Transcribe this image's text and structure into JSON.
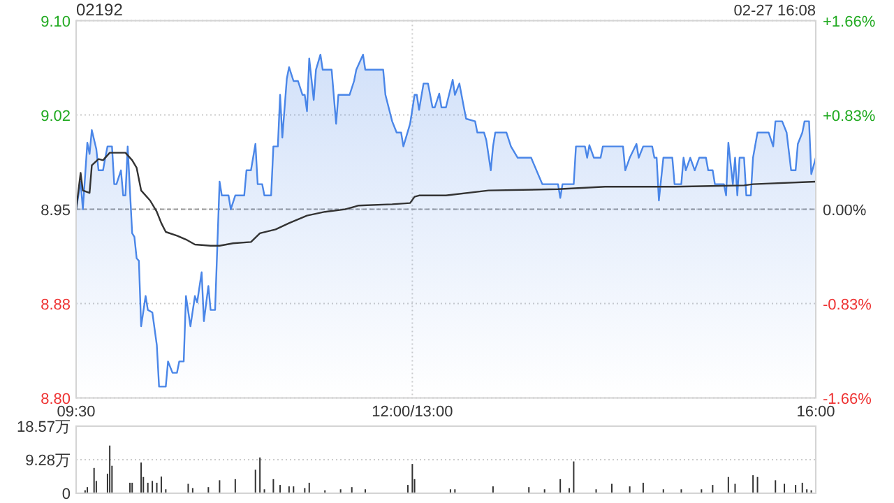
{
  "chart_data": [
    {
      "type": "area",
      "title": "02192",
      "annotations": [
        "02-27 16:08"
      ],
      "categories": [
        "09:30",
        null,
        null,
        null,
        null,
        null,
        null,
        null,
        null,
        null,
        null,
        null,
        null,
        null,
        null,
        null,
        null,
        null,
        null,
        null,
        null,
        null,
        null,
        null,
        null,
        null,
        null,
        null,
        null,
        null,
        null,
        null,
        null,
        null,
        null,
        null,
        null,
        null,
        null,
        null,
        null,
        null,
        null,
        null,
        null,
        null,
        null,
        null,
        null,
        null,
        null,
        null,
        null,
        null,
        null,
        null,
        null,
        null,
        null,
        null,
        null,
        null,
        null,
        null,
        null,
        null,
        null,
        null,
        null,
        null,
        null,
        null,
        null,
        null,
        null,
        null,
        null,
        null,
        null,
        null,
        null,
        null,
        null,
        null,
        null,
        null,
        null,
        null,
        null,
        null,
        null,
        null,
        null,
        null,
        null,
        null,
        null,
        null,
        null,
        null,
        null,
        null,
        null,
        null,
        null,
        null,
        null,
        null,
        null,
        null,
        null,
        null,
        null,
        null,
        null,
        null,
        null,
        null,
        null,
        null,
        null,
        null,
        null,
        null,
        null,
        null,
        null,
        null,
        null,
        null,
        null,
        null,
        null,
        null,
        null,
        null,
        null,
        null,
        null,
        null,
        null,
        null,
        null,
        null,
        null,
        null,
        null,
        null,
        null,
        null,
        "12:00/13:00",
        null,
        null,
        null,
        null,
        null,
        null,
        null,
        null,
        null,
        null,
        null,
        null,
        null,
        null,
        null,
        null,
        null,
        null,
        null,
        null,
        null,
        null,
        null,
        null,
        null,
        null,
        null,
        null,
        null,
        null,
        null,
        null,
        null,
        null,
        null,
        null,
        null,
        null,
        null,
        null,
        null,
        null,
        null,
        null,
        null,
        null,
        null,
        null,
        null,
        null,
        null,
        null,
        null,
        null,
        null,
        null,
        null,
        null,
        null,
        null,
        null,
        null,
        null,
        null,
        null,
        null,
        null,
        null,
        null,
        null,
        null,
        null,
        null,
        null,
        null,
        null,
        null,
        null,
        null,
        null,
        null,
        null,
        null,
        null,
        null,
        null,
        null,
        null,
        null,
        null,
        null,
        null,
        null,
        null,
        null,
        null,
        null,
        null,
        null,
        null,
        null,
        null,
        null,
        null,
        null,
        null,
        null,
        null,
        null,
        null,
        null,
        null,
        null,
        null,
        null,
        null,
        null,
        null,
        null,
        null,
        null,
        null,
        null,
        null,
        null,
        null,
        null,
        null,
        null,
        null,
        null,
        null,
        null,
        null,
        null,
        null,
        null,
        null,
        null,
        null,
        null,
        null,
        null,
        null,
        null,
        null,
        null,
        null,
        null,
        null,
        null,
        null,
        null,
        null,
        null,
        null,
        null,
        null,
        null,
        null,
        null,
        null,
        null,
        null,
        null,
        null,
        null,
        null,
        null,
        null,
        null,
        null,
        null,
        null,
        null,
        null,
        null,
        null,
        null,
        "16:00"
      ],
      "ylim": [
        8.8,
        9.1
      ],
      "yticks": [
        {
          "value": 9.1,
          "label": "9.10"
        },
        {
          "value": 9.025,
          "label": "9.02"
        },
        {
          "value": 8.95,
          "label": "8.95"
        },
        {
          "value": 8.875,
          "label": "8.88"
        },
        {
          "value": 8.8,
          "label": "8.80"
        }
      ],
      "y2lim": [
        -1.66,
        1.66
      ],
      "y2ticks": [
        {
          "value": 1.66,
          "label": "+1.66%"
        },
        {
          "value": 0.83,
          "label": "+0.83%"
        },
        {
          "value": 0,
          "label": "0.00%"
        },
        {
          "value": -0.83,
          "label": "-0.83%"
        },
        {
          "value": -1.66,
          "label": "-1.66%"
        }
      ],
      "grid": true,
      "ref_lines": [
        {
          "axis": "y",
          "value": 8.95,
          "color": "#999999",
          "line_style": "dashed"
        }
      ],
      "series": [
        {
          "color": "#4a86e8",
          "values": [
            8.95,
            8.961,
            8.972,
            8.95,
            null,
            9.003,
            8.994,
            9.013,
            null,
            8.998,
            8.981,
            null,
            8.981,
            8.991,
            9.0,
            null,
            9.0,
            8.97,
            8.97,
            null,
            8.981,
            8.961,
            8.961,
            9.0,
            null,
            8.931,
            8.928,
            8.911,
            8.909,
            8.857,
            null,
            8.881,
            8.87,
            null,
            8.868,
            null,
            8.842,
            8.809,
            null,
            null,
            8.809,
            8.829,
            null,
            8.82,
            null,
            8.82,
            8.829,
            null,
            8.829,
            8.881,
            null,
            8.857,
            null,
            8.881,
            8.876,
            null,
            8.9,
            8.861,
            null,
            8.889,
            8.87,
            null,
            8.87,
            null,
            8.972,
            8.961,
            null,
            null,
            8.961,
            8.95,
            null,
            8.961,
            null,
            null,
            null,
            8.961,
            8.981,
            null,
            8.981,
            null,
            9.002,
            8.97,
            null,
            8.97,
            8.961,
            null,
            null,
            8.961,
            9.0,
            null,
            9.0,
            9.041,
            9.007,
            null,
            9.054,
            9.063,
            null,
            9.052,
            null,
            9.052,
            null,
            9.041,
            9.041,
            9.028,
            9.07,
            null,
            9.037,
            9.061,
            null,
            9.073,
            9.061,
            null,
            null,
            null,
            9.061,
            null,
            9.018,
            9.041,
            null,
            null,
            null,
            null,
            9.041,
            null,
            9.052,
            9.061,
            null,
            null,
            9.073,
            9.061,
            null,
            null,
            null,
            null,
            null,
            null,
            null,
            9.061,
            9.041,
            null,
            null,
            9.02,
            null,
            9.011,
            null,
            9.011,
            9.0,
            null,
            null,
            9.018,
            null,
            9.041,
            9.041,
            9.029,
            null,
            9.05,
            null,
            9.05,
            null,
            9.031,
            9.031,
            null,
            9.042,
            9.031,
            null,
            9.031,
            null,
            null,
            9.053,
            9.041,
            null,
            9.05,
            null,
            9.031,
            9.022,
            null,
            null,
            null,
            9.02,
            9.011,
            null,
            null,
            9.011,
            9.005,
            null,
            8.981,
            9.0,
            9.011,
            null,
            null,
            null,
            null,
            9.011,
            null,
            9.0,
            null,
            null,
            8.991,
            null,
            null,
            null,
            null,
            null,
            8.991,
            null,
            null,
            null,
            null,
            8.97,
            null,
            null,
            null,
            null,
            null,
            null,
            8.97,
            8.959,
            8.97,
            null,
            null,
            null,
            null,
            8.97,
            9.0,
            null,
            null,
            null,
            9.0,
            8.991,
            9.001,
            null,
            8.991,
            null,
            null,
            8.991,
            9.0,
            null,
            null,
            null,
            null,
            null,
            null,
            null,
            null,
            9.0,
            8.981,
            null,
            8.991,
            null,
            null,
            9.002,
            8.991,
            null,
            9.0,
            null,
            null,
            null,
            9.0,
            8.991,
            8.991,
            8.957,
            null,
            8.991,
            null,
            null,
            null,
            8.991,
            8.97,
            null,
            null,
            8.97,
            8.991,
            8.981,
            null,
            8.991,
            null,
            8.981,
            null,
            8.991,
            null,
            null,
            8.991,
            8.981,
            null,
            8.981,
            8.97,
            null,
            null,
            null,
            8.97,
            8.961,
            9.003,
            null,
            8.97,
            8.991,
            8.961,
            8.991,
            null,
            8.991,
            8.961,
            null,
            8.961,
            8.991,
            null,
            9.011,
            null,
            null,
            null,
            null,
            9.011,
            null,
            9.0,
            9.02,
            null,
            null,
            9.02,
            null,
            9.011,
            null,
            8.981,
            null,
            8.981,
            9.002,
            null,
            9.011,
            9.02,
            null,
            9.02,
            8.978,
            null,
            8.991
          ]
        },
        {
          "type": "line",
          "color": "#333333",
          "values": [
            8.95,
            null,
            8.979,
            8.965,
            null,
            null,
            8.963,
            8.985,
            null,
            null,
            8.99,
            null,
            8.989,
            null,
            null,
            8.995,
            null,
            null,
            null,
            null,
            null,
            null,
            8.995,
            null,
            null,
            8.989,
            null,
            8.983,
            null,
            8.965,
            null,
            null,
            null,
            8.957,
            null,
            null,
            8.948,
            null,
            8.939,
            null,
            8.932,
            null,
            null,
            null,
            null,
            8.929,
            null,
            null,
            null,
            8.926,
            null,
            null,
            null,
            8.922,
            null,
            null,
            null,
            null,
            null,
            null,
            8.921,
            null,
            null,
            null,
            8.921,
            null,
            null,
            null,
            null,
            null,
            8.923,
            null,
            null,
            null,
            null,
            null,
            null,
            null,
            8.924,
            null,
            null,
            null,
            8.931,
            null,
            null,
            null,
            null,
            null,
            null,
            8.934,
            null,
            null,
            null,
            null,
            null,
            8.939,
            null,
            null,
            null,
            null,
            null,
            null,
            null,
            8.945,
            null,
            null,
            null,
            null,
            null,
            null,
            null,
            8.948,
            null,
            null,
            null,
            null,
            null,
            null,
            null,
            null,
            8.95,
            null,
            null,
            null,
            null,
            null,
            8.953,
            null,
            null,
            null,
            null,
            null,
            null,
            null,
            null,
            null,
            null,
            null,
            null,
            null,
            null,
            8.954,
            null,
            null,
            null,
            null,
            null,
            null,
            null,
            8.955,
            null,
            8.96,
            null,
            8.961,
            null,
            null,
            null,
            null,
            null,
            null,
            null,
            null,
            null,
            null,
            null,
            8.961,
            null,
            null,
            null,
            null,
            null,
            null,
            null,
            null,
            null,
            null,
            null,
            null,
            null,
            null,
            null,
            null,
            null,
            null,
            8.965,
            null,
            null,
            null,
            null,
            null,
            null,
            null,
            null,
            null,
            null,
            null,
            null,
            null,
            null,
            null,
            null,
            null,
            null,
            null,
            null,
            null,
            null,
            null,
            null,
            null,
            null,
            null,
            null,
            null,
            null,
            8.966,
            null,
            null,
            null,
            null,
            null,
            null,
            null,
            null,
            null,
            null,
            null,
            null,
            null,
            null,
            null,
            null,
            null,
            null,
            null,
            null,
            8.968,
            null,
            null,
            null,
            null,
            null,
            null,
            null,
            null,
            null,
            null,
            null,
            null,
            null,
            null,
            null,
            null,
            null,
            null,
            null,
            null,
            null,
            null,
            null,
            null,
            null,
            null,
            null,
            null,
            null,
            null,
            8.968,
            null,
            null,
            null,
            null,
            null,
            null,
            null,
            null,
            null,
            null,
            null,
            null,
            null,
            null,
            null,
            null,
            null,
            null,
            null,
            null,
            null,
            null,
            null,
            null,
            null,
            null,
            null,
            null,
            null,
            null,
            8.969,
            null,
            null,
            null,
            8.97,
            null,
            null,
            null,
            null,
            null,
            null,
            null,
            null,
            null,
            null,
            null,
            null,
            null,
            null,
            null,
            null,
            null,
            null,
            null,
            null,
            null,
            null,
            null,
            null,
            null,
            null,
            null,
            8.972
          ]
        }
      ]
    },
    {
      "type": "bar",
      "color": "#333333",
      "tick_labels": "y",
      "grid": "y",
      "categories": [
        null,
        null,
        null,
        null,
        null,
        null,
        null,
        null,
        null,
        null,
        null,
        null,
        null,
        null,
        null,
        null,
        null,
        null,
        null,
        null,
        null,
        null,
        null,
        null,
        null,
        null,
        null,
        null,
        null,
        null,
        null,
        null,
        null,
        null,
        null,
        null,
        null,
        null,
        null,
        null,
        null,
        null,
        null,
        null,
        null,
        null,
        null,
        null,
        null,
        null,
        null,
        null,
        null,
        null,
        null,
        null,
        null,
        null,
        null,
        null,
        null,
        null,
        null,
        null,
        null,
        null,
        null,
        null,
        null,
        null,
        null,
        null,
        null,
        null,
        null,
        null,
        null,
        null,
        null,
        null,
        null,
        null,
        null,
        null,
        null,
        null,
        null,
        null,
        null,
        null,
        null,
        null,
        null,
        null,
        null,
        null,
        null,
        null,
        null,
        null,
        null,
        null,
        null,
        null,
        null,
        null,
        null,
        null,
        null,
        null,
        null,
        null,
        null,
        null,
        null,
        null,
        null,
        null,
        null,
        null,
        null,
        null,
        null,
        null,
        null,
        null,
        null,
        null,
        null,
        null,
        null,
        null,
        null,
        null,
        null,
        null,
        null,
        null,
        null,
        null,
        null,
        null,
        null,
        null,
        null,
        null,
        null,
        null,
        null,
        null,
        null,
        null,
        null,
        null,
        null,
        null,
        null,
        null,
        null,
        null,
        null,
        null,
        null,
        null,
        null,
        null,
        null,
        null,
        null,
        null,
        null,
        null,
        null,
        null,
        null,
        null,
        null,
        null,
        null,
        null,
        null,
        null,
        null,
        null,
        null,
        null,
        null,
        null,
        null,
        null,
        null,
        null,
        null,
        null,
        null,
        null,
        null,
        null,
        null,
        null,
        null,
        null,
        null,
        null,
        null,
        null,
        null,
        null,
        null,
        null,
        null,
        null,
        null,
        null,
        null,
        null,
        null,
        null,
        null,
        null,
        null,
        null,
        null,
        null,
        null,
        null,
        null,
        null,
        null,
        null,
        null,
        null,
        null,
        null,
        null,
        null,
        null,
        null,
        null,
        null,
        null,
        null,
        null,
        null,
        null,
        null,
        null,
        null,
        null,
        null,
        null,
        null,
        null,
        null,
        null,
        null,
        null,
        null,
        null,
        null,
        null,
        null,
        null,
        null,
        null,
        null,
        null,
        null,
        null,
        null,
        null,
        null,
        null,
        null,
        null,
        null,
        null,
        null,
        null,
        null,
        null,
        null,
        null,
        null,
        null,
        null,
        null,
        null,
        null,
        null,
        null,
        null,
        null,
        null,
        null,
        null,
        null,
        null,
        null,
        null,
        null,
        null,
        null,
        null,
        null,
        null,
        null,
        null,
        null,
        null,
        null,
        null,
        null,
        null,
        null,
        null,
        null,
        null,
        null,
        null,
        null,
        null,
        null,
        null,
        null,
        null,
        null,
        null,
        null,
        null,
        null
      ],
      "ylim": [
        0,
        18.57
      ],
      "yticks": [
        0,
        {
          "value": 9.28,
          "label": "9.28万"
        },
        {
          "value": 18.57,
          "label": "18.57万"
        }
      ],
      "values": [
        null,
        null,
        null,
        null,
        0.8,
        1.7,
        null,
        null,
        7.0,
        3.4,
        null,
        null,
        null,
        null,
        5.4,
        13.2,
        7.6,
        null,
        null,
        null,
        null,
        null,
        null,
        null,
        2.9,
        2.9,
        null,
        null,
        null,
        8.5,
        4.5,
        null,
        2.9,
        null,
        3.4,
        null,
        2.9,
        null,
        4.6,
        null,
        1.1,
        null,
        null,
        null,
        null,
        null,
        null,
        null,
        null,
        null,
        2.6,
        null,
        1.4,
        null,
        null,
        null,
        null,
        null,
        null,
        1.7,
        null,
        null,
        null,
        null,
        3.6,
        null,
        null,
        null,
        null,
        null,
        null,
        3.9,
        null,
        null,
        null,
        null,
        null,
        null,
        null,
        null,
        6.5,
        null,
        9.9,
        null,
        1.1,
        null,
        null,
        null,
        3.9,
        null,
        null,
        2.3,
        null,
        null,
        null,
        1.9,
        null,
        1.9,
        null,
        null,
        null,
        null,
        1.4,
        null,
        2.9,
        null,
        null,
        null,
        null,
        null,
        null,
        0.8,
        null,
        null,
        null,
        null,
        null,
        null,
        1.1,
        null,
        null,
        null,
        null,
        1.7,
        null,
        null,
        null,
        null,
        null,
        1.1,
        null,
        null,
        null,
        null,
        null,
        null,
        null,
        null,
        null,
        null,
        null,
        null,
        null,
        null,
        null,
        null,
        null,
        null,
        2.3,
        null,
        8.1,
        3.9,
        null,
        null,
        null,
        null,
        null,
        null,
        null,
        null,
        null,
        null,
        null,
        null,
        null,
        null,
        null,
        1.1,
        null,
        1.1,
        null,
        null,
        null,
        null,
        null,
        null,
        null,
        null,
        null,
        null,
        null,
        null,
        null,
        null,
        null,
        null,
        1.9,
        null,
        null,
        null,
        null,
        null,
        null,
        null,
        null,
        null,
        null,
        null,
        null,
        null,
        null,
        null,
        1.7,
        null,
        null,
        null,
        null,
        null,
        null,
        1.1,
        null,
        null,
        null,
        null,
        null,
        null,
        3.9,
        null,
        null,
        null,
        1.4,
        null,
        8.8,
        null,
        null,
        null,
        null,
        null,
        null,
        null,
        null,
        null,
        1.1,
        null,
        null,
        null,
        null,
        null,
        null,
        2.6,
        null,
        null,
        null,
        null,
        null,
        null,
        null,
        1.9,
        null,
        null,
        null,
        null,
        null,
        2.9,
        null,
        null,
        null,
        null,
        null,
        null,
        null,
        null,
        1.1,
        null,
        null,
        null,
        null,
        null,
        null,
        null,
        1.1,
        null,
        null,
        null,
        null,
        null,
        null,
        null,
        null,
        1.1,
        null,
        null,
        null,
        null,
        2.3,
        null,
        null,
        null,
        null,
        null,
        null,
        4.5,
        null,
        null,
        2.6,
        null,
        null,
        null,
        null,
        null,
        null,
        null,
        5.0,
        null,
        4.5,
        null,
        null,
        null,
        null,
        null,
        null,
        null,
        3.6,
        null,
        null,
        null,
        2.6,
        null,
        null,
        null,
        null,
        2.3,
        null,
        null,
        2.9,
        null,
        1.1,
        null,
        0.8,
        null,
        null
      ]
    }
  ]
}
